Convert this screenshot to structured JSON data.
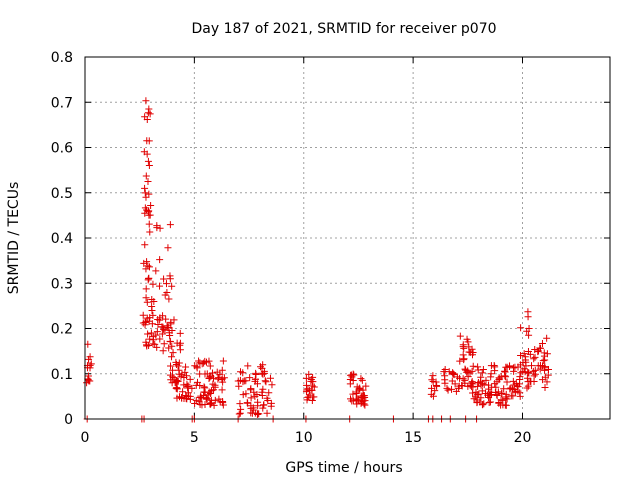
{
  "chart_data": {
    "type": "scatter",
    "title": "Day 187 of 2021, SRMTID for receiver p070",
    "xlabel": "GPS time / hours",
    "ylabel": "SRMTID / TECUs",
    "xlim": [
      0,
      24
    ],
    "ylim": [
      0,
      0.8
    ],
    "x_ticks": [
      "0",
      "5",
      "10",
      "15",
      "20"
    ],
    "y_ticks": [
      "0",
      "0.1",
      "0.2",
      "0.3",
      "0.4",
      "0.5",
      "0.6",
      "0.7",
      "0.8"
    ],
    "grid": true,
    "series": [
      {
        "name": "SRMTID",
        "color": "#e00000",
        "marker": "plus",
        "clusters": [
          {
            "x": [
              0.05,
              0.3
            ],
            "y": [
              0.08,
              0.17
            ],
            "n": 14
          },
          {
            "x": [
              2.7,
              3.0
            ],
            "y": [
              0.45,
              0.71
            ],
            "n": 26
          },
          {
            "x": [
              2.65,
              3.2
            ],
            "y": [
              0.16,
              0.45
            ],
            "n": 40
          },
          {
            "x": [
              3.2,
              4.0
            ],
            "y": [
              0.15,
              0.43
            ],
            "n": 40
          },
          {
            "x": [
              3.9,
              4.4
            ],
            "y": [
              0.08,
              0.22
            ],
            "n": 28
          },
          {
            "x": [
              4.1,
              4.9
            ],
            "y": [
              0.04,
              0.12
            ],
            "n": 35
          },
          {
            "x": [
              5.0,
              6.4
            ],
            "y": [
              0.03,
              0.13
            ],
            "n": 70
          },
          {
            "x": [
              7.0,
              8.6
            ],
            "y": [
              0.01,
              0.12
            ],
            "n": 65
          },
          {
            "x": [
              10.1,
              10.5
            ],
            "y": [
              0.04,
              0.1
            ],
            "n": 22
          },
          {
            "x": [
              12.1,
              12.9
            ],
            "y": [
              0.03,
              0.1
            ],
            "n": 40
          },
          {
            "x": [
              15.8,
              16.1
            ],
            "y": [
              0.05,
              0.1
            ],
            "n": 10
          },
          {
            "x": [
              16.4,
              17.1
            ],
            "y": [
              0.06,
              0.11
            ],
            "n": 18
          },
          {
            "x": [
              17.1,
              17.8
            ],
            "y": [
              0.07,
              0.19
            ],
            "n": 38
          },
          {
            "x": [
              17.7,
              19.3
            ],
            "y": [
              0.03,
              0.12
            ],
            "n": 80
          },
          {
            "x": [
              19.4,
              19.9
            ],
            "y": [
              0.05,
              0.14
            ],
            "n": 25
          },
          {
            "x": [
              19.9,
              20.3
            ],
            "y": [
              0.1,
              0.24
            ],
            "n": 22
          },
          {
            "x": [
              20.2,
              21.2
            ],
            "y": [
              0.06,
              0.18
            ],
            "n": 40
          }
        ],
        "zero_points_x": [
          0.1,
          2.6,
          2.7,
          4.9,
          5.0,
          7.0,
          8.6,
          10.1,
          12.1,
          14.1,
          15.7,
          15.9,
          16.3,
          16.7,
          17.4,
          17.9
        ]
      }
    ]
  }
}
